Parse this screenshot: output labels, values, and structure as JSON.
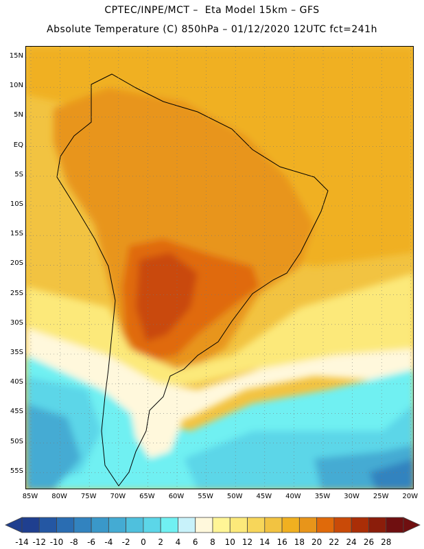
{
  "header": {
    "title_line1": "CPTEC/INPE/MCT –  Eta Model 15km – GFS",
    "title_line2": "Absolute Temperature (C) 850hPa – 01/12/2020 12UTC fct=241h"
  },
  "map": {
    "region": "South America",
    "variable": "Absolute Temperature (C)",
    "level": "850hPa",
    "lat_labels": [
      "15N",
      "10N",
      "5N",
      "EQ",
      "5S",
      "10S",
      "15S",
      "20S",
      "25S",
      "30S",
      "35S",
      "40S",
      "45S",
      "50S",
      "55S"
    ],
    "lon_labels": [
      "85W",
      "80W",
      "75W",
      "70W",
      "65W",
      "60W",
      "55W",
      "50W",
      "45W",
      "40W",
      "35W",
      "30W",
      "25W",
      "20W"
    ]
  },
  "colorbar": {
    "labels": [
      "-14",
      "-12",
      "-10",
      "-8",
      "-6",
      "-4",
      "-2",
      "0",
      "2",
      "4",
      "6",
      "8",
      "10",
      "12",
      "14",
      "16",
      "18",
      "20",
      "22",
      "24",
      "26",
      "28"
    ],
    "colors": [
      "#1f3f8f",
      "#2457a3",
      "#2a6db2",
      "#3283bf",
      "#3a98c9",
      "#44abd3",
      "#4fc0dd",
      "#5cd6e8",
      "#70f0f2",
      "#c8f2fa",
      "#fff8dc",
      "#fff596",
      "#fce97a",
      "#f7d65a",
      "#f2c341",
      "#f0b020",
      "#e8951a",
      "#e06a0a",
      "#c94a08",
      "#aa2e07",
      "#8b1d0a",
      "#6f0f10"
    ]
  }
}
